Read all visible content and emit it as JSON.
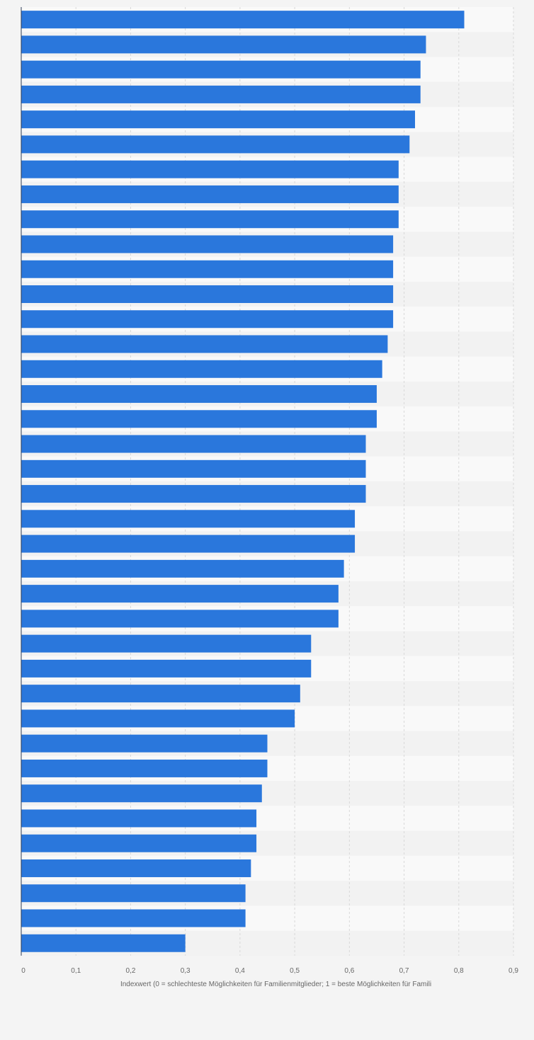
{
  "chart_data": {
    "type": "bar",
    "orientation": "horizontal",
    "values": [
      0.81,
      0.74,
      0.73,
      0.73,
      0.72,
      0.71,
      0.69,
      0.69,
      0.69,
      0.68,
      0.68,
      0.68,
      0.68,
      0.67,
      0.66,
      0.65,
      0.65,
      0.63,
      0.63,
      0.63,
      0.61,
      0.61,
      0.59,
      0.58,
      0.58,
      0.53,
      0.53,
      0.51,
      0.5,
      0.45,
      0.45,
      0.44,
      0.43,
      0.43,
      0.42,
      0.41,
      0.41,
      0.3
    ],
    "xlim": [
      0,
      0.9
    ],
    "x_ticks": [
      "0",
      "0,1",
      "0,2",
      "0,3",
      "0,4",
      "0,5",
      "0,6",
      "0,7",
      "0,8",
      "0,9"
    ],
    "xlabel": "Indexwert (0 = schlechteste Möglichkeiten für Familienmitglieder; 1 = beste Möglichkeiten für Famili",
    "grid": true,
    "bar_color": "#2a77dc",
    "stripe_colors": [
      "#f9f9f9",
      "#f2f2f2"
    ],
    "background": "#f4f4f4",
    "gridline_color": "#d8d8d8",
    "axis_color": "#2d3b55"
  }
}
